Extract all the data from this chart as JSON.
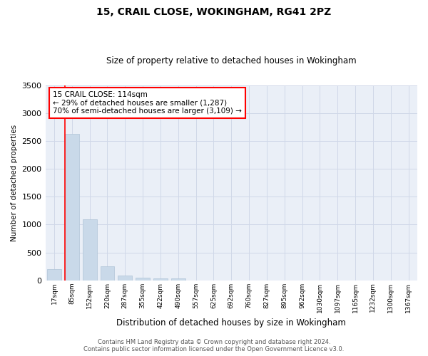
{
  "title1": "15, CRAIL CLOSE, WOKINGHAM, RG41 2PZ",
  "title2": "Size of property relative to detached houses in Wokingham",
  "xlabel": "Distribution of detached houses by size in Wokingham",
  "ylabel": "Number of detached properties",
  "bar_color": "#c9d9e9",
  "bar_edge_color": "#b0c4d8",
  "bins": [
    "17sqm",
    "85sqm",
    "152sqm",
    "220sqm",
    "287sqm",
    "355sqm",
    "422sqm",
    "490sqm",
    "557sqm",
    "625sqm",
    "692sqm",
    "760sqm",
    "827sqm",
    "895sqm",
    "962sqm",
    "1030sqm",
    "1097sqm",
    "1165sqm",
    "1232sqm",
    "1300sqm",
    "1367sqm"
  ],
  "values": [
    200,
    2620,
    1100,
    250,
    80,
    50,
    30,
    30,
    0,
    0,
    0,
    0,
    0,
    0,
    0,
    0,
    0,
    0,
    0,
    0,
    0
  ],
  "vline_bin_index": 1,
  "annotation_text": "15 CRAIL CLOSE: 114sqm\n← 29% of detached houses are smaller (1,287)\n70% of semi-detached houses are larger (3,109) →",
  "annotation_box_color": "white",
  "annotation_box_edge_color": "red",
  "ylim": [
    0,
    3500
  ],
  "yticks": [
    0,
    500,
    1000,
    1500,
    2000,
    2500,
    3000,
    3500
  ],
  "grid_color": "#d0d8e8",
  "background_color": "#eaeff7",
  "footer1": "Contains HM Land Registry data © Crown copyright and database right 2024.",
  "footer2": "Contains public sector information licensed under the Open Government Licence v3.0."
}
